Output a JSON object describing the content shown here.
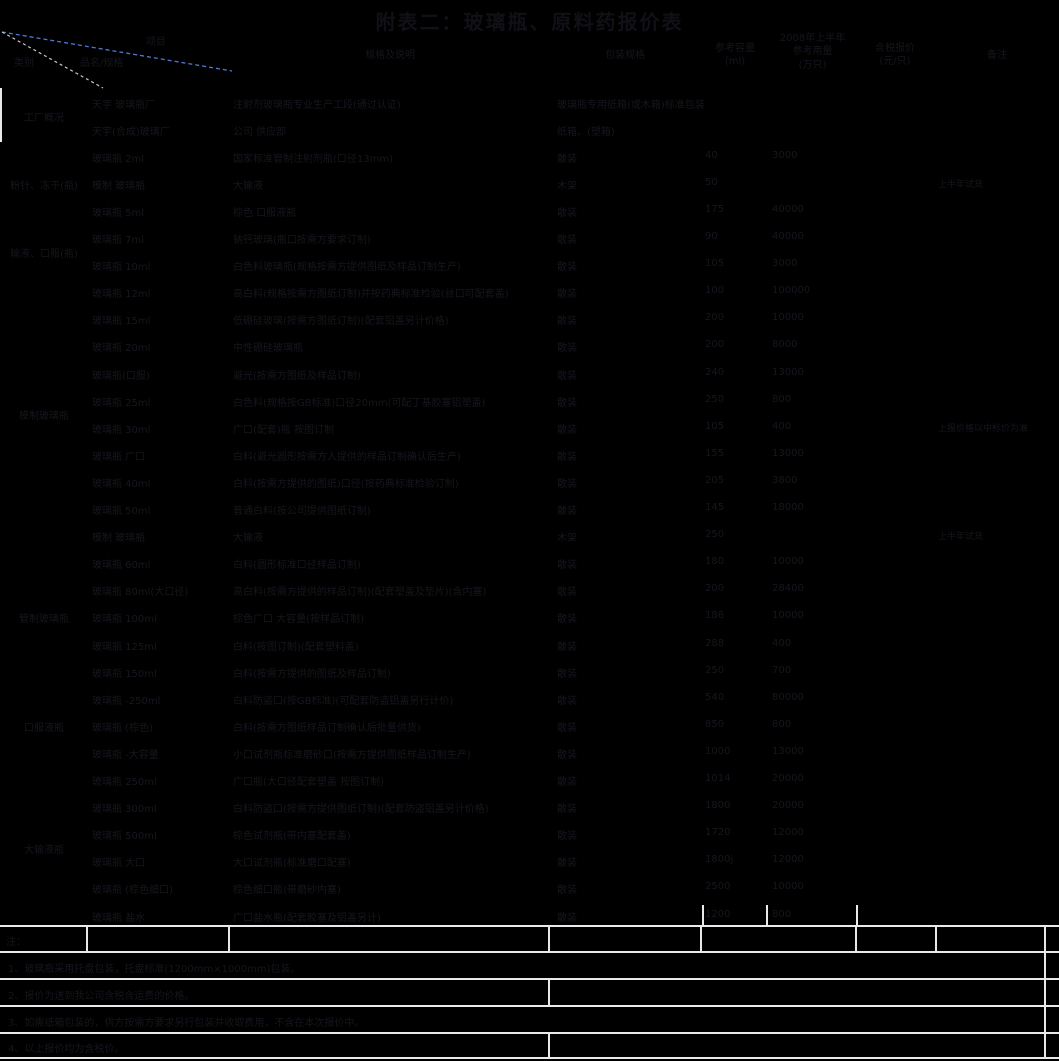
{
  "title": "附表二：玻璃瓶、原料药报价表",
  "header": {
    "diagonal": {
      "top": "项目",
      "middle": "品名/规格",
      "bottom": "类别"
    },
    "col_desc": "规格及说明",
    "col_pack": "包装规格",
    "col_capacity_1": "参考容量",
    "col_capacity_2": "(ml)",
    "col_qty_1": "2008年上半年",
    "col_qty_2": "参考用量",
    "col_qty_3": "(万只)",
    "col_price_1": "含税报价",
    "col_price_2": "(元/只)",
    "col_remark": "备注"
  },
  "accent_colors": {
    "diagonal_blue": "#4d79d6",
    "diagonal_gray": "#c8c8cc",
    "grid_white": "#e9e9e9",
    "ink": "#16161e"
  },
  "table": {
    "categories": [
      {
        "label": "工厂概况",
        "rows": 2
      },
      {
        "label": "粉针、冻干(瓶)",
        "rows": 3
      },
      {
        "label": "输液、口服(瓶)",
        "rows": 2
      },
      {
        "label": "模制玻璃瓶",
        "rows": 10
      },
      {
        "label": "管制玻璃瓶",
        "rows": 5
      },
      {
        "label": "口服液瓶",
        "rows": 3
      },
      {
        "label": "大输液瓶",
        "rows": 6
      }
    ],
    "rows": [
      {
        "name": "天宇 玻璃瓶厂",
        "desc": "注射剂玻璃瓶专业生产工段(通过认证)",
        "pack": "玻璃瓶专用纸箱(或木箱)标准包装",
        "capacity": "",
        "qty": "",
        "price": "",
        "remark": ""
      },
      {
        "name": "天宇(合成)玻璃厂",
        "desc": "公司 供应部",
        "pack": "纸箱、(塑箱)",
        "capacity": "",
        "qty": "",
        "price": "",
        "remark": ""
      },
      {
        "name": "玻璃瓶 2ml",
        "desc": "国家标准管制注射剂瓶(口径13mm)",
        "pack": "散装",
        "capacity": "40",
        "qty": "3000",
        "price": "",
        "remark": ""
      },
      {
        "name": "模制 玻璃瓶",
        "desc": "大输液",
        "pack": "木架",
        "capacity": "50",
        "qty": "",
        "price": "",
        "remark": "上半年试货"
      },
      {
        "name": "玻璃瓶 5ml",
        "desc": "棕色 口服液瓶",
        "pack": "散装",
        "capacity": "175",
        "qty": "40000",
        "price": "",
        "remark": ""
      },
      {
        "name": "玻璃瓶 7ml",
        "desc": "钠钙玻璃(瓶口按需方要求订制)",
        "pack": "散装",
        "capacity": "90",
        "qty": "40000",
        "price": "",
        "remark": ""
      },
      {
        "name": "玻璃瓶 10ml",
        "desc": "白色料玻璃瓶(规格按需方提供图纸及样品订制生产)",
        "pack": "散装",
        "capacity": "105",
        "qty": "3000",
        "price": "",
        "remark": ""
      },
      {
        "name": "玻璃瓶 12ml",
        "desc": "高白料(规格按需方图纸订制)并按药典标准检验(丝口可配套盖)",
        "pack": "散装",
        "capacity": "100",
        "qty": "100000",
        "price": "",
        "remark": ""
      },
      {
        "name": "玻璃瓶 15ml",
        "desc": "低硼硅玻璃(按需方图纸订制)(配套铝盖另计价格)",
        "pack": "散装",
        "capacity": "200",
        "qty": "10000",
        "price": "",
        "remark": ""
      },
      {
        "name": "玻璃瓶 20ml",
        "desc": "中性硼硅玻璃瓶",
        "pack": "散装",
        "capacity": "200",
        "qty": "8000",
        "price": "",
        "remark": ""
      },
      {
        "name": "玻璃瓶(口服)",
        "desc": "避光(按需方图纸及样品订制)",
        "pack": "散装",
        "capacity": "240",
        "qty": "13000",
        "price": "",
        "remark": ""
      },
      {
        "name": "玻璃瓶 25ml",
        "desc": "白色料(规格按GB标准)口径20mm(可配丁基胶塞铝塑盖)",
        "pack": "散装",
        "capacity": "250",
        "qty": "800",
        "price": "",
        "remark": ""
      },
      {
        "name": "玻璃瓶 30ml",
        "desc": "广口(配套)瓶 按图订制",
        "pack": "散装",
        "capacity": "105",
        "qty": "400",
        "price": "",
        "remark": "上报价格以中标价为准"
      },
      {
        "name": "玻璃瓶 广口",
        "desc": "白料(避光圆形按需方人提供的样品订制确认后生产)",
        "pack": "散装",
        "capacity": "155",
        "qty": "13000",
        "price": "",
        "remark": ""
      },
      {
        "name": "玻璃瓶 40ml",
        "desc": "白料(按需方提供的图纸)口径(按药典标准检验订制)",
        "pack": "散装",
        "capacity": "205",
        "qty": "3800",
        "price": "",
        "remark": ""
      },
      {
        "name": "玻璃瓶 50ml",
        "desc": "普通白料(按公司提供图纸订制)",
        "pack": "散装",
        "capacity": "145",
        "qty": "18000",
        "price": "",
        "remark": ""
      },
      {
        "name": "模制 玻璃瓶",
        "desc": "大输液",
        "pack": "木架",
        "capacity": "250",
        "qty": "",
        "price": "",
        "remark": "上半年试货"
      },
      {
        "name": "玻璃瓶 60ml",
        "desc": "白料(圆形标准口径样品订制)",
        "pack": "散装",
        "capacity": "180",
        "qty": "10000",
        "price": "",
        "remark": ""
      },
      {
        "name": "玻璃瓶 80ml(大口径)",
        "desc": "高白料(按需方提供的样品订制)(配套塑盖及垫片)(含内塞)",
        "pack": "散装",
        "capacity": "200",
        "qty": "28400",
        "price": "",
        "remark": ""
      },
      {
        "name": "玻璃瓶 100ml",
        "desc": "棕色广口 大容量(按样品订制)",
        "pack": "散装",
        "capacity": "186",
        "qty": "10000",
        "price": "",
        "remark": ""
      },
      {
        "name": "玻璃瓶 125ml",
        "desc": "白料(按图订制)(配套塑料盖)",
        "pack": "散装",
        "capacity": "288",
        "qty": "400",
        "price": "",
        "remark": ""
      },
      {
        "name": "玻璃瓶 150ml",
        "desc": "白料(按需方提供的图纸及样品订制)",
        "pack": "散装",
        "capacity": "250",
        "qty": "700",
        "price": "",
        "remark": ""
      },
      {
        "name": "玻璃瓶 -250ml",
        "desc": "白料防盗口(按GB标准)(可配套防盗铝盖另行计价)",
        "pack": "散装",
        "capacity": "540",
        "qty": "80000",
        "price": "",
        "remark": ""
      },
      {
        "name": "玻璃瓶 (棕色)",
        "desc": "白料(按需方图纸样品订制确认后批量供货)",
        "pack": "散装",
        "capacity": "850",
        "qty": "800",
        "price": "",
        "remark": ""
      },
      {
        "name": "玻璃瓶 -大容量",
        "desc": "小口试剂瓶标准磨砂口(按需方提供图纸样品订制生产)",
        "pack": "散装",
        "capacity": "1000",
        "qty": "13000",
        "price": "",
        "remark": ""
      },
      {
        "name": "玻璃瓶 250ml",
        "desc": "广口瓶(大口径配套塑盖 按图订制)",
        "pack": "散装",
        "capacity": "1014",
        "qty": "20000",
        "price": "",
        "remark": ""
      },
      {
        "name": "玻璃瓶 300ml",
        "desc": "白料防盗口(按需方提供图纸订制)(配套防盗铝盖另计价格)",
        "pack": "散装",
        "capacity": "1800",
        "qty": "20000",
        "price": "",
        "remark": ""
      },
      {
        "name": "玻璃瓶 500ml",
        "desc": "棕色试剂瓶(带内塞配套盖)",
        "pack": "散装",
        "capacity": "1720",
        "qty": "12000",
        "price": "",
        "remark": ""
      },
      {
        "name": "玻璃瓶 大口",
        "desc": "大口试剂瓶(标准磨口配塞)",
        "pack": "散装",
        "capacity": "1800j",
        "qty": "12000",
        "price": "",
        "remark": ""
      },
      {
        "name": "玻璃瓶 (棕色细口)",
        "desc": "棕色细口瓶(带磨砂内塞)",
        "pack": "散装",
        "capacity": "2500",
        "qty": "10000",
        "price": "",
        "remark": ""
      },
      {
        "name": "玻璃瓶 盐水",
        "desc": "广口盐水瓶(配套胶塞及铝盖另计)",
        "pack": "散装",
        "capacity": "1200",
        "qty": "800",
        "price": "",
        "remark": ""
      }
    ]
  },
  "notes": {
    "label": "注：",
    "items": [
      "1、玻璃瓶采用托盘包装，托盘标准(1200mm×1000mm)包装。",
      "2、报价为送到我公司含税含运费的价格。",
      "3、如需纸箱包装的，供方按需方要求另行包装并收取费用，不含在本次报价中。",
      "4、以上报价均为含税价。"
    ]
  }
}
